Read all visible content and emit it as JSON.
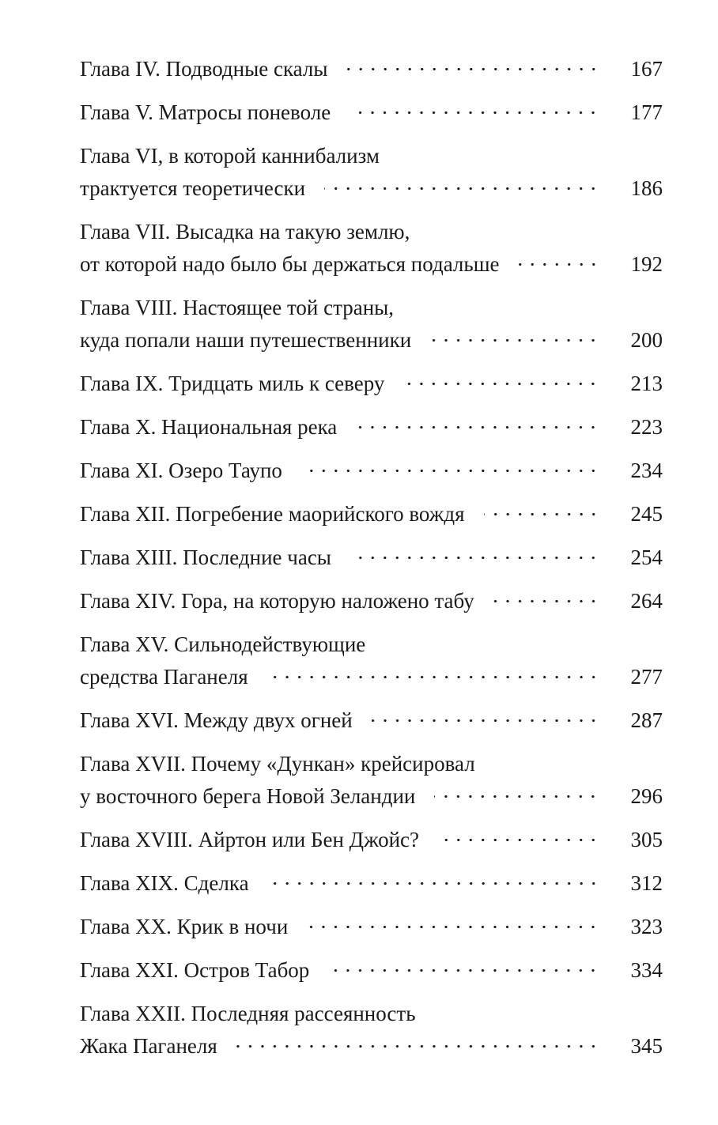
{
  "toc": [
    {
      "lines": [
        "Глава IV. Подводные скалы"
      ],
      "page": "167"
    },
    {
      "lines": [
        "Глава V. Матросы поневоле"
      ],
      "page": "177"
    },
    {
      "lines": [
        "Глава VI, в которой каннибализм",
        "трактуется теоретически"
      ],
      "page": "186"
    },
    {
      "lines": [
        "Глава VII. Высадка на такую землю,",
        "от которой надо было бы держаться подальше"
      ],
      "page": "192"
    },
    {
      "lines": [
        "Глава VIII. Настоящее той страны,",
        "куда попали наши путешественники"
      ],
      "page": "200"
    },
    {
      "lines": [
        "Глава IX. Тридцать миль к северу"
      ],
      "page": "213"
    },
    {
      "lines": [
        "Глава X. Национальная река"
      ],
      "page": "223"
    },
    {
      "lines": [
        "Глава XI. Озеро Таупо"
      ],
      "page": "234"
    },
    {
      "lines": [
        "Глава XII. Погребение маорийского вождя"
      ],
      "page": "245"
    },
    {
      "lines": [
        "Глава XIII. Последние часы"
      ],
      "page": "254"
    },
    {
      "lines": [
        "Глава XIV. Гора, на которую наложено табу"
      ],
      "page": "264"
    },
    {
      "lines": [
        "Глава XV. Сильнодействующие",
        "средства Паганеля"
      ],
      "page": "277"
    },
    {
      "lines": [
        "Глава XVI. Между двух огней"
      ],
      "page": "287"
    },
    {
      "lines": [
        "Глава XVII. Почему «Дункан» крейсировал",
        "у восточного берега Новой Зеландии"
      ],
      "page": "296"
    },
    {
      "lines": [
        "Глава XVIII. Айртон или Бен Джойс?"
      ],
      "page": "305"
    },
    {
      "lines": [
        "Глава XIX. Сделка"
      ],
      "page": "312"
    },
    {
      "lines": [
        "Глава XX. Крик в ночи"
      ],
      "page": "323"
    },
    {
      "lines": [
        "Глава XXI. Остров Табор"
      ],
      "page": "334"
    },
    {
      "lines": [
        "Глава XXII. Последняя рассеянность",
        "Жака Паганеля"
      ],
      "page": "345"
    }
  ]
}
